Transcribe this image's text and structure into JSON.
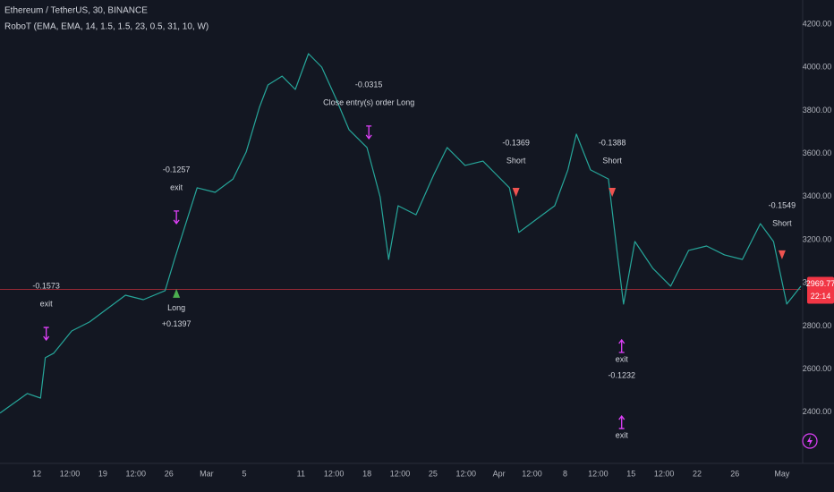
{
  "chart_data": {
    "type": "line",
    "title": "Ethereum / TetherUS, 30, BINANCE",
    "subtitle": "RoboT (EMA, EMA, 14, 1.5, 1.5, 23, 0.5, 31, 10, W)",
    "x": [
      7.1,
      10.0,
      11.4,
      11.9,
      12.8,
      14.7,
      16.6,
      18.5,
      20.4,
      22.3,
      24.6,
      25.6,
      26.5,
      28.0,
      29.9,
      31.8,
      33.2,
      34.6,
      35.5,
      37.0,
      38.4,
      39.8,
      41.2,
      42.7,
      44.1,
      46.0,
      47.4,
      48.3,
      49.3,
      51.2,
      53.1,
      54.5,
      56.4,
      58.3,
      59.7,
      61.1,
      62.1,
      64.0,
      65.9,
      67.3,
      68.2,
      69.7,
      71.6,
      72.5,
      73.2,
      74.4,
      76.3,
      78.2,
      80.1,
      82.0,
      83.9,
      85.8,
      87.7,
      89.1,
      90.5,
      92.0
    ],
    "values": [
      2396,
      2487,
      2466,
      2653,
      2674,
      2777,
      2819,
      2881,
      2943,
      2922,
      2964,
      3109,
      3234,
      3441,
      3420,
      3482,
      3607,
      3814,
      3918,
      3959,
      3897,
      4063,
      4001,
      3856,
      3711,
      3628,
      3399,
      3109,
      3358,
      3316,
      3503,
      3628,
      3545,
      3565,
      3503,
      3441,
      3234,
      3296,
      3358,
      3524,
      3690,
      3524,
      3482,
      3151,
      2902,
      3192,
      3068,
      2985,
      3151,
      3171,
      3130,
      3109,
      3275,
      3192,
      2902,
      2985
    ],
    "color": "#26a69a",
    "xlim": [
      7.1,
      92
    ],
    "ylim": [
      2163,
      4312
    ],
    "xticks": [
      {
        "value": 11,
        "label": "12"
      },
      {
        "value": 14.5,
        "label": "12:00"
      },
      {
        "value": 18,
        "label": "19"
      },
      {
        "value": 21.5,
        "label": "12:00"
      },
      {
        "value": 25,
        "label": "26"
      },
      {
        "value": 29,
        "label": "Mar"
      },
      {
        "value": 33,
        "label": "5"
      },
      {
        "value": 39,
        "label": "11"
      },
      {
        "value": 42.5,
        "label": "12:00"
      },
      {
        "value": 46,
        "label": "18"
      },
      {
        "value": 49.5,
        "label": "12:00"
      },
      {
        "value": 53,
        "label": "25"
      },
      {
        "value": 56.5,
        "label": "12:00"
      },
      {
        "value": 60,
        "label": "Apr"
      },
      {
        "value": 63.5,
        "label": "12:00"
      },
      {
        "value": 67,
        "label": "8"
      },
      {
        "value": 70.5,
        "label": "12:00"
      },
      {
        "value": 74,
        "label": "15"
      },
      {
        "value": 77.5,
        "label": "12:00"
      },
      {
        "value": 81,
        "label": "22"
      },
      {
        "value": 85,
        "label": "26"
      },
      {
        "value": 90,
        "label": "May"
      }
    ],
    "yticks": [
      {
        "value": 4200,
        "label": "4200.00"
      },
      {
        "value": 4000,
        "label": "4000.00"
      },
      {
        "value": 3800,
        "label": "3800.00"
      },
      {
        "value": 3600,
        "label": "3600.00"
      },
      {
        "value": 3400,
        "label": "3400.00"
      },
      {
        "value": 3200,
        "label": "3200.00"
      },
      {
        "value": 3000,
        "label": "3000.00"
      },
      {
        "value": 2800,
        "label": "2800.00"
      },
      {
        "value": 2600,
        "label": "2600.00"
      },
      {
        "value": 2400,
        "label": "2400.00"
      }
    ],
    "grid": false,
    "last_price": 2969.77,
    "last_price_color": "#f23645",
    "countdown": "22:14",
    "annotations": [
      {
        "x": 12.0,
        "price": 2698,
        "position": "above",
        "marker": "exit",
        "texts": [
          "-0.1573",
          "exit"
        ]
      },
      {
        "x": 25.8,
        "price": 3238,
        "position": "above",
        "marker": "exit",
        "texts": [
          "-0.1257",
          "exit"
        ]
      },
      {
        "x": 25.8,
        "price": 3010,
        "position": "below",
        "marker": "long",
        "texts": [
          "Long",
          "+0.1397"
        ]
      },
      {
        "x": 46.2,
        "price": 3632,
        "position": "above",
        "marker": "exit",
        "texts": [
          "-0.0315",
          "Close entry(s) order Long"
        ]
      },
      {
        "x": 61.8,
        "price": 3362,
        "position": "above",
        "marker": "short",
        "texts": [
          "-0.1369",
          "Short"
        ]
      },
      {
        "x": 72.0,
        "price": 3362,
        "position": "above",
        "marker": "short",
        "texts": [
          "-0.1388",
          "Short"
        ]
      },
      {
        "x": 73.0,
        "price": 2773,
        "position": "below",
        "marker": "exit",
        "texts": [
          "exit",
          "-0.1232"
        ]
      },
      {
        "x": 73.0,
        "price": 2420,
        "position": "below",
        "marker": "exit",
        "texts": [
          "exit"
        ]
      },
      {
        "x": 90.0,
        "price": 3072,
        "position": "above",
        "marker": "short",
        "texts": [
          "-0.1549",
          "Short"
        ]
      }
    ]
  }
}
